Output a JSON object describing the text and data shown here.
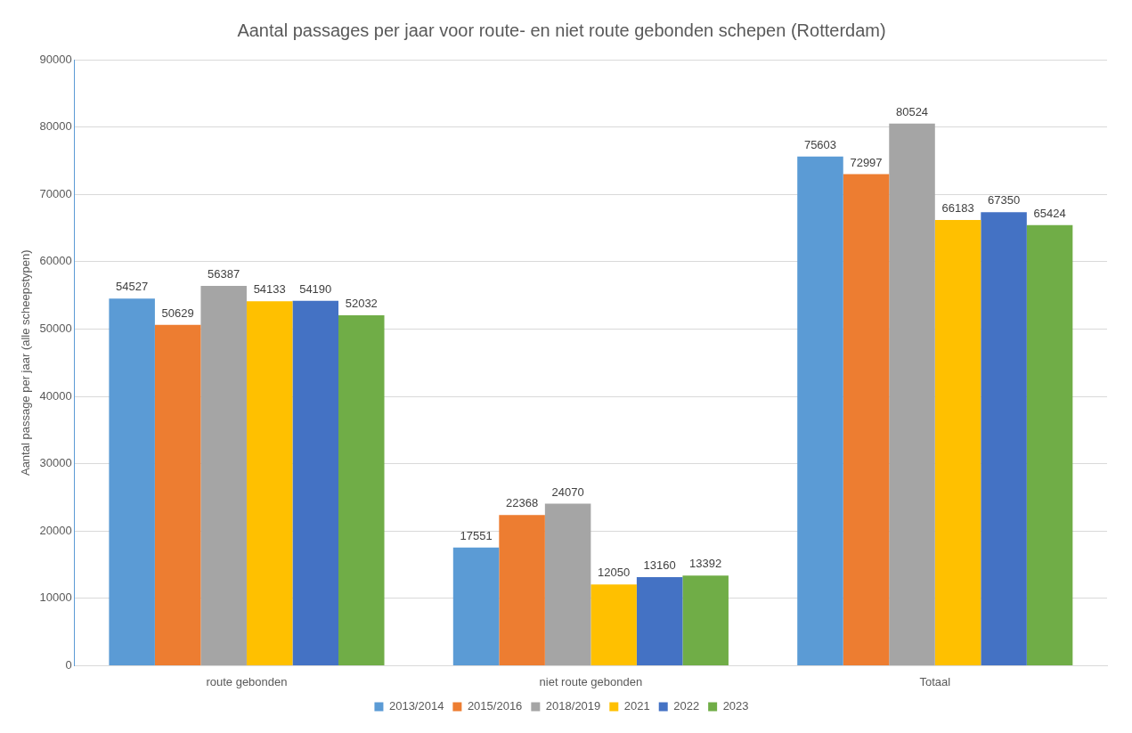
{
  "chart_data": {
    "type": "bar",
    "title": "Aantal passages per jaar voor route- en niet route gebonden schepen (Rotterdam)",
    "ylabel": "Aantal passage per jaar (alle scheepstypen)",
    "categories": [
      "route gebonden",
      "niet route gebonden",
      "Totaal"
    ],
    "series": [
      {
        "name": "2013/2014",
        "color": "#5b9bd5",
        "values": [
          54527,
          17551,
          75603
        ]
      },
      {
        "name": "2015/2016",
        "color": "#ed7d31",
        "values": [
          50629,
          22368,
          72997
        ]
      },
      {
        "name": "2018/2019",
        "color": "#a5a5a5",
        "values": [
          56387,
          24070,
          80524
        ]
      },
      {
        "name": "2021",
        "color": "#ffc000",
        "values": [
          54133,
          12050,
          66183
        ]
      },
      {
        "name": "2022",
        "color": "#4472c4",
        "values": [
          54190,
          13160,
          67350
        ]
      },
      {
        "name": "2023",
        "color": "#70ad47",
        "values": [
          52032,
          13392,
          65424
        ]
      }
    ],
    "ylim": [
      0,
      90000
    ],
    "yticks": [
      0,
      10000,
      20000,
      30000,
      40000,
      50000,
      60000,
      70000,
      80000,
      90000
    ],
    "grid": "y",
    "legend": "bottom",
    "data_labels": true
  }
}
